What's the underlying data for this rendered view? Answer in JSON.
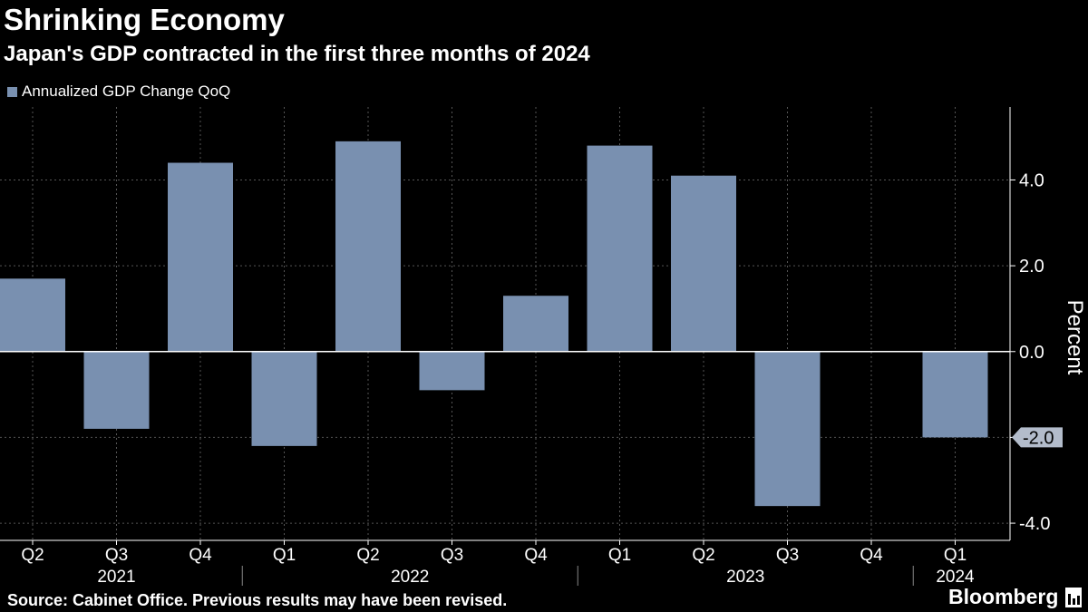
{
  "header": {
    "title": "Shrinking Economy",
    "subtitle": "Japan's GDP contracted in the first three months of 2024"
  },
  "footer": {
    "source": "Source: Cabinet Office. Previous results may have been revised.",
    "brand": "Bloomberg"
  },
  "colors": {
    "background": "#000000",
    "bar": "#7990b0",
    "grid": "#555555",
    "text": "#ffffff"
  },
  "chart_data": {
    "type": "bar",
    "title": "Shrinking Economy",
    "subtitle": "Japan's GDP contracted in the first three months of 2024",
    "categories": [
      "Q2",
      "Q3",
      "Q4",
      "Q1",
      "Q2",
      "Q3",
      "Q4",
      "Q1",
      "Q2",
      "Q3",
      "Q4",
      "Q1"
    ],
    "year_groups": [
      {
        "label": "2021",
        "start": 0,
        "end": 2
      },
      {
        "label": "2022",
        "start": 3,
        "end": 6
      },
      {
        "label": "2023",
        "start": 7,
        "end": 10
      },
      {
        "label": "2024",
        "start": 11,
        "end": 11
      }
    ],
    "series": [
      {
        "name": "Annualized GDP Change QoQ",
        "values": [
          1.7,
          -1.8,
          4.4,
          -2.2,
          4.9,
          -0.9,
          1.3,
          4.8,
          4.1,
          -3.6,
          null,
          -2.0
        ]
      }
    ],
    "xlabel": "",
    "ylabel": "Percent",
    "ylim": [
      -4.4,
      5.7
    ],
    "yticks": [
      4.0,
      2.0,
      0.0,
      -2.0,
      -4.0
    ],
    "ytick_labels": [
      "4.0",
      "2.0",
      "0.0",
      "-2.0",
      "-4.0"
    ],
    "callout": {
      "value": -2.0,
      "label": "-2.0"
    },
    "grid": true,
    "legend_position": "top-left"
  }
}
